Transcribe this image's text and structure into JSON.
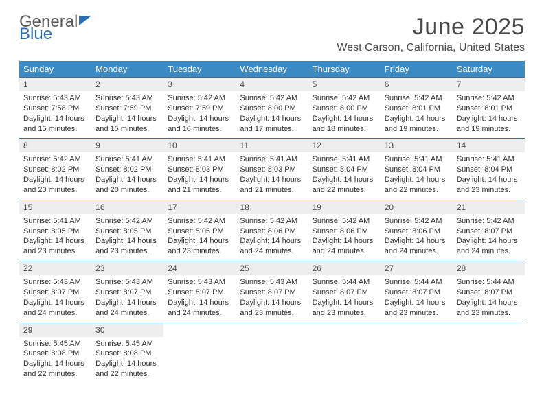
{
  "logo": {
    "word1": "General",
    "word2": "Blue"
  },
  "title": {
    "month": "June 2025",
    "location": "West Carson, California, United States"
  },
  "colors": {
    "header_bg": "#3b8ac4",
    "header_text": "#ffffff",
    "row_border": "#3b6fa0",
    "daynum_bg": "#eeeeee",
    "text": "#4a4a4a",
    "logo_blue": "#2a6db3"
  },
  "weekdays": [
    "Sunday",
    "Monday",
    "Tuesday",
    "Wednesday",
    "Thursday",
    "Friday",
    "Saturday"
  ],
  "weeks": [
    [
      {
        "n": "1",
        "sr": "5:43 AM",
        "ss": "7:58 PM",
        "dl": "14 hours and 15 minutes."
      },
      {
        "n": "2",
        "sr": "5:43 AM",
        "ss": "7:59 PM",
        "dl": "14 hours and 15 minutes."
      },
      {
        "n": "3",
        "sr": "5:42 AM",
        "ss": "7:59 PM",
        "dl": "14 hours and 16 minutes."
      },
      {
        "n": "4",
        "sr": "5:42 AM",
        "ss": "8:00 PM",
        "dl": "14 hours and 17 minutes."
      },
      {
        "n": "5",
        "sr": "5:42 AM",
        "ss": "8:00 PM",
        "dl": "14 hours and 18 minutes."
      },
      {
        "n": "6",
        "sr": "5:42 AM",
        "ss": "8:01 PM",
        "dl": "14 hours and 19 minutes."
      },
      {
        "n": "7",
        "sr": "5:42 AM",
        "ss": "8:01 PM",
        "dl": "14 hours and 19 minutes."
      }
    ],
    [
      {
        "n": "8",
        "sr": "5:42 AM",
        "ss": "8:02 PM",
        "dl": "14 hours and 20 minutes."
      },
      {
        "n": "9",
        "sr": "5:41 AM",
        "ss": "8:02 PM",
        "dl": "14 hours and 20 minutes."
      },
      {
        "n": "10",
        "sr": "5:41 AM",
        "ss": "8:03 PM",
        "dl": "14 hours and 21 minutes."
      },
      {
        "n": "11",
        "sr": "5:41 AM",
        "ss": "8:03 PM",
        "dl": "14 hours and 21 minutes."
      },
      {
        "n": "12",
        "sr": "5:41 AM",
        "ss": "8:04 PM",
        "dl": "14 hours and 22 minutes."
      },
      {
        "n": "13",
        "sr": "5:41 AM",
        "ss": "8:04 PM",
        "dl": "14 hours and 22 minutes."
      },
      {
        "n": "14",
        "sr": "5:41 AM",
        "ss": "8:04 PM",
        "dl": "14 hours and 23 minutes."
      }
    ],
    [
      {
        "n": "15",
        "sr": "5:41 AM",
        "ss": "8:05 PM",
        "dl": "14 hours and 23 minutes."
      },
      {
        "n": "16",
        "sr": "5:42 AM",
        "ss": "8:05 PM",
        "dl": "14 hours and 23 minutes."
      },
      {
        "n": "17",
        "sr": "5:42 AM",
        "ss": "8:05 PM",
        "dl": "14 hours and 23 minutes."
      },
      {
        "n": "18",
        "sr": "5:42 AM",
        "ss": "8:06 PM",
        "dl": "14 hours and 24 minutes."
      },
      {
        "n": "19",
        "sr": "5:42 AM",
        "ss": "8:06 PM",
        "dl": "14 hours and 24 minutes."
      },
      {
        "n": "20",
        "sr": "5:42 AM",
        "ss": "8:06 PM",
        "dl": "14 hours and 24 minutes."
      },
      {
        "n": "21",
        "sr": "5:42 AM",
        "ss": "8:07 PM",
        "dl": "14 hours and 24 minutes."
      }
    ],
    [
      {
        "n": "22",
        "sr": "5:43 AM",
        "ss": "8:07 PM",
        "dl": "14 hours and 24 minutes."
      },
      {
        "n": "23",
        "sr": "5:43 AM",
        "ss": "8:07 PM",
        "dl": "14 hours and 24 minutes."
      },
      {
        "n": "24",
        "sr": "5:43 AM",
        "ss": "8:07 PM",
        "dl": "14 hours and 24 minutes."
      },
      {
        "n": "25",
        "sr": "5:43 AM",
        "ss": "8:07 PM",
        "dl": "14 hours and 23 minutes."
      },
      {
        "n": "26",
        "sr": "5:44 AM",
        "ss": "8:07 PM",
        "dl": "14 hours and 23 minutes."
      },
      {
        "n": "27",
        "sr": "5:44 AM",
        "ss": "8:07 PM",
        "dl": "14 hours and 23 minutes."
      },
      {
        "n": "28",
        "sr": "5:44 AM",
        "ss": "8:07 PM",
        "dl": "14 hours and 23 minutes."
      }
    ],
    [
      {
        "n": "29",
        "sr": "5:45 AM",
        "ss": "8:08 PM",
        "dl": "14 hours and 22 minutes."
      },
      {
        "n": "30",
        "sr": "5:45 AM",
        "ss": "8:08 PM",
        "dl": "14 hours and 22 minutes."
      },
      null,
      null,
      null,
      null,
      null
    ]
  ],
  "labels": {
    "sunrise": "Sunrise: ",
    "sunset": "Sunset: ",
    "daylight": "Daylight: "
  }
}
